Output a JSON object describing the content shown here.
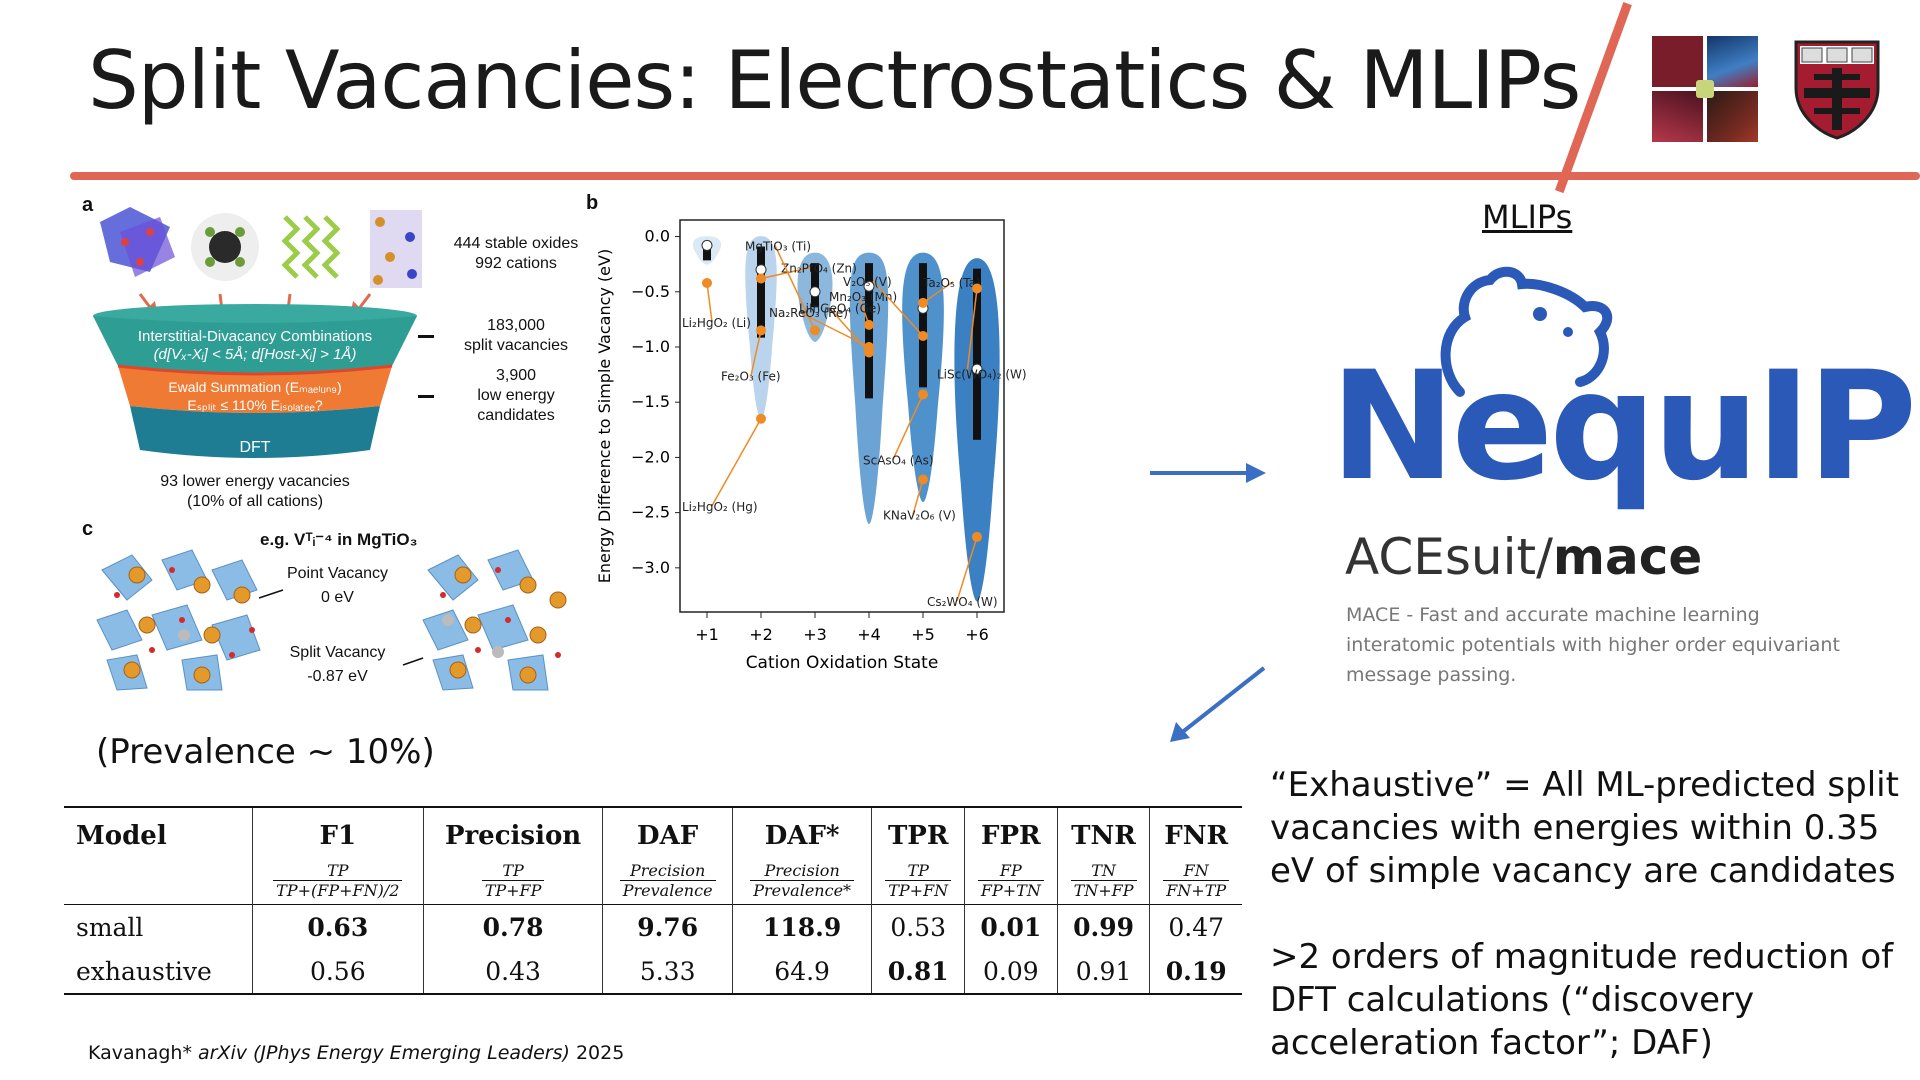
{
  "title": "Split Vacancies: Electrostatics & MLIPs",
  "figure": {
    "panel_a": {
      "label": "a",
      "stats1_line1": "444 stable oxides",
      "stats1_line2": "992 cations",
      "stage1_line1": "Interstitial-Divacancy Combinations",
      "stage1_line2": "(d[Vₓ-Xᵢ] < 5Å; d[Host-Xᵢ] > 1Å)",
      "stage2_line1": "Ewald Summation (Eₘₐₑₗᵤₙ₉)",
      "stage2_line2": "Eₛₚₗᵢₜ ≤ 110% Eᵢₛₒₗₐₜₑₑ?",
      "stage3": "DFT",
      "stats2_line1": "183,000",
      "stats2_line2": "split vacancies",
      "stats3_line1": "3,900",
      "stats3_line2": "low energy",
      "stats3_line3": "candidates",
      "bottom_line1": "93 lower energy vacancies",
      "bottom_line2": "(10% of all cations)"
    },
    "panel_c": {
      "label": "c",
      "example": "e.g. Vᵀᵢ⁻⁴ in MgTiO₃",
      "point_label": "Point Vacancy",
      "point_value": "0 eV",
      "split_label": "Split Vacancy",
      "split_value": "-0.87 eV"
    },
    "panel_b_label": "b"
  },
  "chart_data": {
    "type": "violin",
    "xlabel": "Cation Oxidation State",
    "ylabel": "Energy Difference to Simple Vacancy (eV)",
    "categories": [
      "+1",
      "+2",
      "+3",
      "+4",
      "+5",
      "+6"
    ],
    "ylim": [
      -3.4,
      0.15
    ],
    "yticks": [
      "0.0",
      "−0.5",
      "−1.0",
      "−1.5",
      "−2.0",
      "−2.5",
      "−3.0"
    ],
    "ytick_values": [
      0.0,
      -0.5,
      -1.0,
      -1.5,
      -2.0,
      -2.5,
      -3.0
    ],
    "violins": [
      {
        "category": "+1",
        "min": -0.25,
        "max": 0.0,
        "median": -0.08,
        "color": "#dce9f5"
      },
      {
        "category": "+2",
        "min": -1.65,
        "max": 0.0,
        "median": -0.3,
        "color": "#b9d4ec"
      },
      {
        "category": "+3",
        "min": -0.95,
        "max": -0.15,
        "median": -0.5,
        "color": "#8cb8de"
      },
      {
        "category": "+4",
        "min": -2.6,
        "max": -0.15,
        "median": -0.45,
        "color": "#6aa3d4"
      },
      {
        "category": "+5",
        "min": -2.4,
        "max": -0.15,
        "median": -0.65,
        "color": "#4f91cb"
      },
      {
        "category": "+6",
        "min": -3.3,
        "max": -0.2,
        "median": -1.2,
        "color": "#3a80c2"
      }
    ],
    "annotations": [
      {
        "text": "Zn₂PtO₄ (Zn)",
        "category": "+2",
        "y": -0.38
      },
      {
        "text": "Mn₂O₃ (Mn)",
        "category": "+4",
        "y": -0.8
      },
      {
        "text": "Ta₂O₅ (Ta)",
        "category": "+5",
        "y": -0.6
      },
      {
        "text": "Li₂HgO₂ (Li)",
        "category": "+1",
        "y": -0.42
      },
      {
        "text": "Fe₂O₃ (Fe)",
        "category": "+2",
        "y": -0.85
      },
      {
        "text": "LiSc(WO₄)₂ (W)",
        "category": "+6",
        "y": -0.47
      },
      {
        "text": "MgTiO₃ (Ti)",
        "category": "+3",
        "y": -0.85
      },
      {
        "text": "V₂O₅ (V)",
        "category": "+5",
        "y": -0.9
      },
      {
        "text": "LiInGeO₄ (Ge)",
        "category": "+4",
        "y": -1.05
      },
      {
        "text": "ScAsO₄ (As)",
        "category": "+5",
        "y": -1.43
      },
      {
        "text": "Li₂HgO₂ (Hg)",
        "category": "+2",
        "y": -1.65
      },
      {
        "text": "Na₂ReO₃ (Re)",
        "category": "+4",
        "y": -1.0
      },
      {
        "text": "KNaV₂O₆ (V)",
        "category": "+5",
        "y": -2.2
      },
      {
        "text": "Cs₂WO₄ (W)",
        "category": "+6",
        "y": -2.72
      }
    ]
  },
  "mlips_heading": "MLIPs",
  "nequip_logo": "NequIP",
  "ace_org": "ACEsuit/",
  "ace_repo": "mace",
  "ace_desc": "MACE - Fast and accurate machine learning interatomic potentials with higher order equivariant message passing.",
  "prevalence": "(Prevalence ~ 10%)",
  "table": {
    "headers": [
      "Model",
      "F1",
      "Precision",
      "DAF",
      "DAF*",
      "TPR",
      "FPR",
      "TNR",
      "FNR"
    ],
    "formulas": [
      {
        "num": "TP",
        "den": "TP+(FP+FN)/2"
      },
      {
        "num": "TP",
        "den": "TP+FP"
      },
      {
        "num": "Precision",
        "den": "Prevalence"
      },
      {
        "num": "Precision",
        "den": "Prevalence*"
      },
      {
        "num": "TP",
        "den": "TP+FN"
      },
      {
        "num": "FP",
        "den": "FP+TN"
      },
      {
        "num": "TN",
        "den": "TN+FP"
      },
      {
        "num": "FN",
        "den": "FN+TP"
      }
    ],
    "rows": [
      {
        "model": "small",
        "values": [
          "0.63",
          "0.78",
          "9.76",
          "118.9",
          "0.53",
          "0.01",
          "0.99",
          "0.47"
        ],
        "bold": [
          true,
          true,
          true,
          true,
          false,
          true,
          true,
          false
        ]
      },
      {
        "model": "exhaustive",
        "values": [
          "0.56",
          "0.43",
          "5.33",
          "64.9",
          "0.81",
          "0.09",
          "0.91",
          "0.19"
        ],
        "bold": [
          false,
          false,
          false,
          false,
          true,
          false,
          false,
          true
        ]
      }
    ]
  },
  "exhaustive_text": "“Exhaustive” = All ML-predicted split vacancies with energies within 0.35 eV of simple vacancy are candidates",
  "reduction_text": ">2 orders of magnitude reduction of DFT calculations (“discovery acceleration factor”; DAF)",
  "citation_author": "Kavanagh* ",
  "citation_journal": "arXiv (JPhys Energy Emerging Leaders)",
  "citation_year": " 2025"
}
